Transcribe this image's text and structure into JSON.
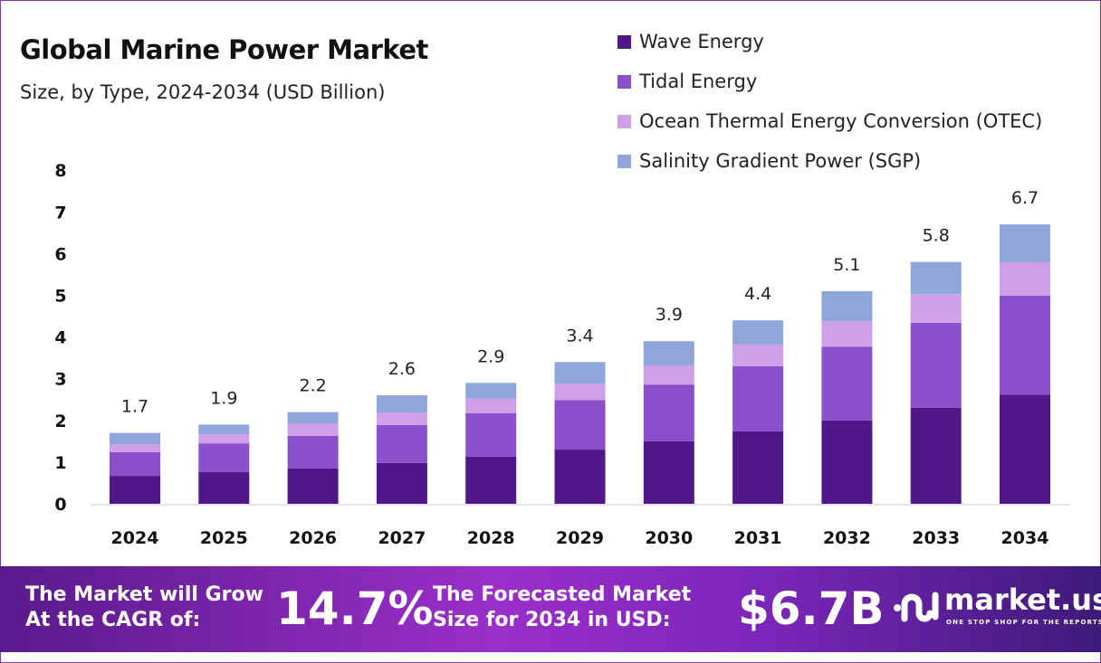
{
  "chart_data": {
    "type": "bar",
    "stacked": true,
    "title": "Global Marine Power Market",
    "subtitle": "Size, by Type, 2024-2034 (USD Billion)",
    "categories": [
      "2024",
      "2025",
      "2026",
      "2027",
      "2028",
      "2029",
      "2030",
      "2031",
      "2032",
      "2033",
      "2034"
    ],
    "series": [
      {
        "name": "Wave Energy",
        "color": "#4F1787",
        "values": [
          0.67,
          0.76,
          0.85,
          0.98,
          1.13,
          1.3,
          1.5,
          1.74,
          2.0,
          2.3,
          2.62
        ]
      },
      {
        "name": "Tidal Energy",
        "color": "#8B4FCB",
        "values": [
          0.57,
          0.69,
          0.78,
          0.91,
          1.04,
          1.19,
          1.36,
          1.56,
          1.77,
          2.04,
          2.37
        ]
      },
      {
        "name": "Ocean Thermal Energy Conversion (OTEC)",
        "color": "#CFA0E8",
        "values": [
          0.19,
          0.22,
          0.3,
          0.3,
          0.35,
          0.39,
          0.46,
          0.52,
          0.61,
          0.69,
          0.8
        ]
      },
      {
        "name": "Salinity Gradient Power (SGP)",
        "color": "#8FA6DA",
        "values": [
          0.27,
          0.23,
          0.27,
          0.41,
          0.38,
          0.52,
          0.58,
          0.58,
          0.72,
          0.77,
          0.91
        ]
      }
    ],
    "totals": [
      "1.7",
      "1.9",
      "2.2",
      "2.6",
      "2.9",
      "3.4",
      "3.9",
      "4.4",
      "5.1",
      "5.8",
      "6.7"
    ],
    "yticks": [
      "0",
      "1",
      "2",
      "3",
      "4",
      "5",
      "6",
      "7",
      "8"
    ],
    "ylim": [
      0,
      8
    ],
    "grid": false,
    "legend": "top-right"
  },
  "banner": {
    "cagr_label_1": "The Market will Grow",
    "cagr_label_2": "At the CAGR of:",
    "cagr_value": "14.7%",
    "forecast_label_1": "The Forecasted Market",
    "forecast_label_2": "Size for 2034 in USD:",
    "forecast_value": "$6.7B",
    "logo_name": "market.us",
    "logo_tagline": "ONE STOP SHOP FOR THE REPORTS"
  }
}
